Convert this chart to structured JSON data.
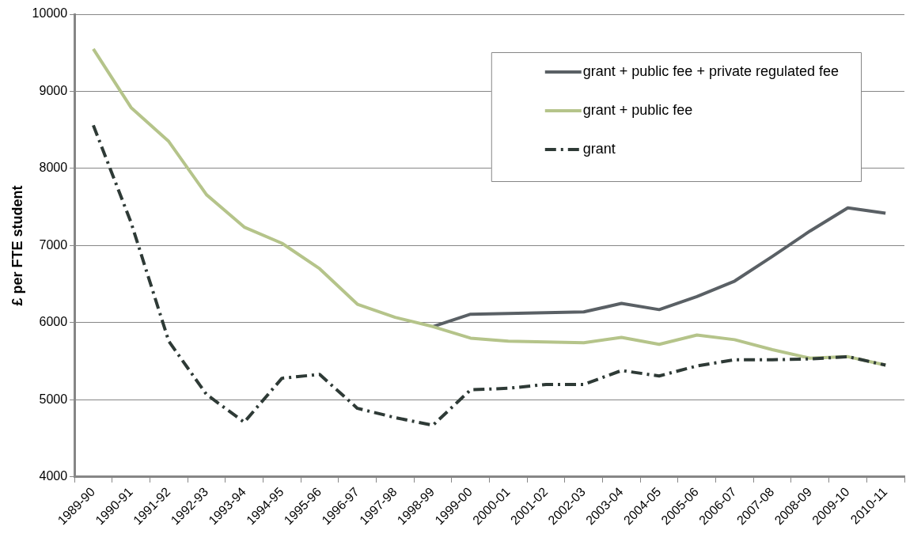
{
  "chart_data": {
    "type": "line",
    "ylabel": "£ per FTE student",
    "categories": [
      "1989-90",
      "1990-91",
      "1991-92",
      "1992-93",
      "1993-94",
      "1994-95",
      "1995-96",
      "1996-97",
      "1997-98",
      "1998-99",
      "1999-00",
      "2000-01",
      "2001-02",
      "2002-03",
      "2003-04",
      "2004-05",
      "2005-06",
      "2006-07",
      "2007-08",
      "2008-09",
      "2009-10",
      "2010-11"
    ],
    "series": [
      {
        "name": "grant + public fee + private regulated fee",
        "color": "#5a6065",
        "line_style": "solid",
        "values": [
          null,
          null,
          null,
          null,
          null,
          null,
          null,
          null,
          null,
          5950,
          6110,
          6120,
          6130,
          6140,
          6250,
          6170,
          6340,
          6540,
          6860,
          7190,
          7490,
          7420
        ]
      },
      {
        "name": "grant + public fee",
        "color": "#b5c48a",
        "line_style": "solid",
        "values": [
          9550,
          8790,
          8350,
          7660,
          7240,
          7030,
          6700,
          6240,
          6070,
          5950,
          5800,
          5760,
          5750,
          5740,
          5810,
          5720,
          5840,
          5780,
          5650,
          5540,
          5560,
          5450
        ]
      },
      {
        "name": "grant",
        "color": "#2e3a36",
        "line_style": "dashed",
        "values": [
          8560,
          7300,
          5760,
          5070,
          4710,
          5280,
          5330,
          4890,
          4770,
          4670,
          5130,
          5150,
          5200,
          5200,
          5380,
          5310,
          5440,
          5520,
          5520,
          5530,
          5560,
          5450
        ]
      }
    ],
    "ylim": [
      4000,
      10000
    ],
    "yticks": [
      4000,
      5000,
      6000,
      7000,
      8000,
      9000,
      10000
    ],
    "grid": "y",
    "legend": "top right",
    "marker": "none"
  }
}
